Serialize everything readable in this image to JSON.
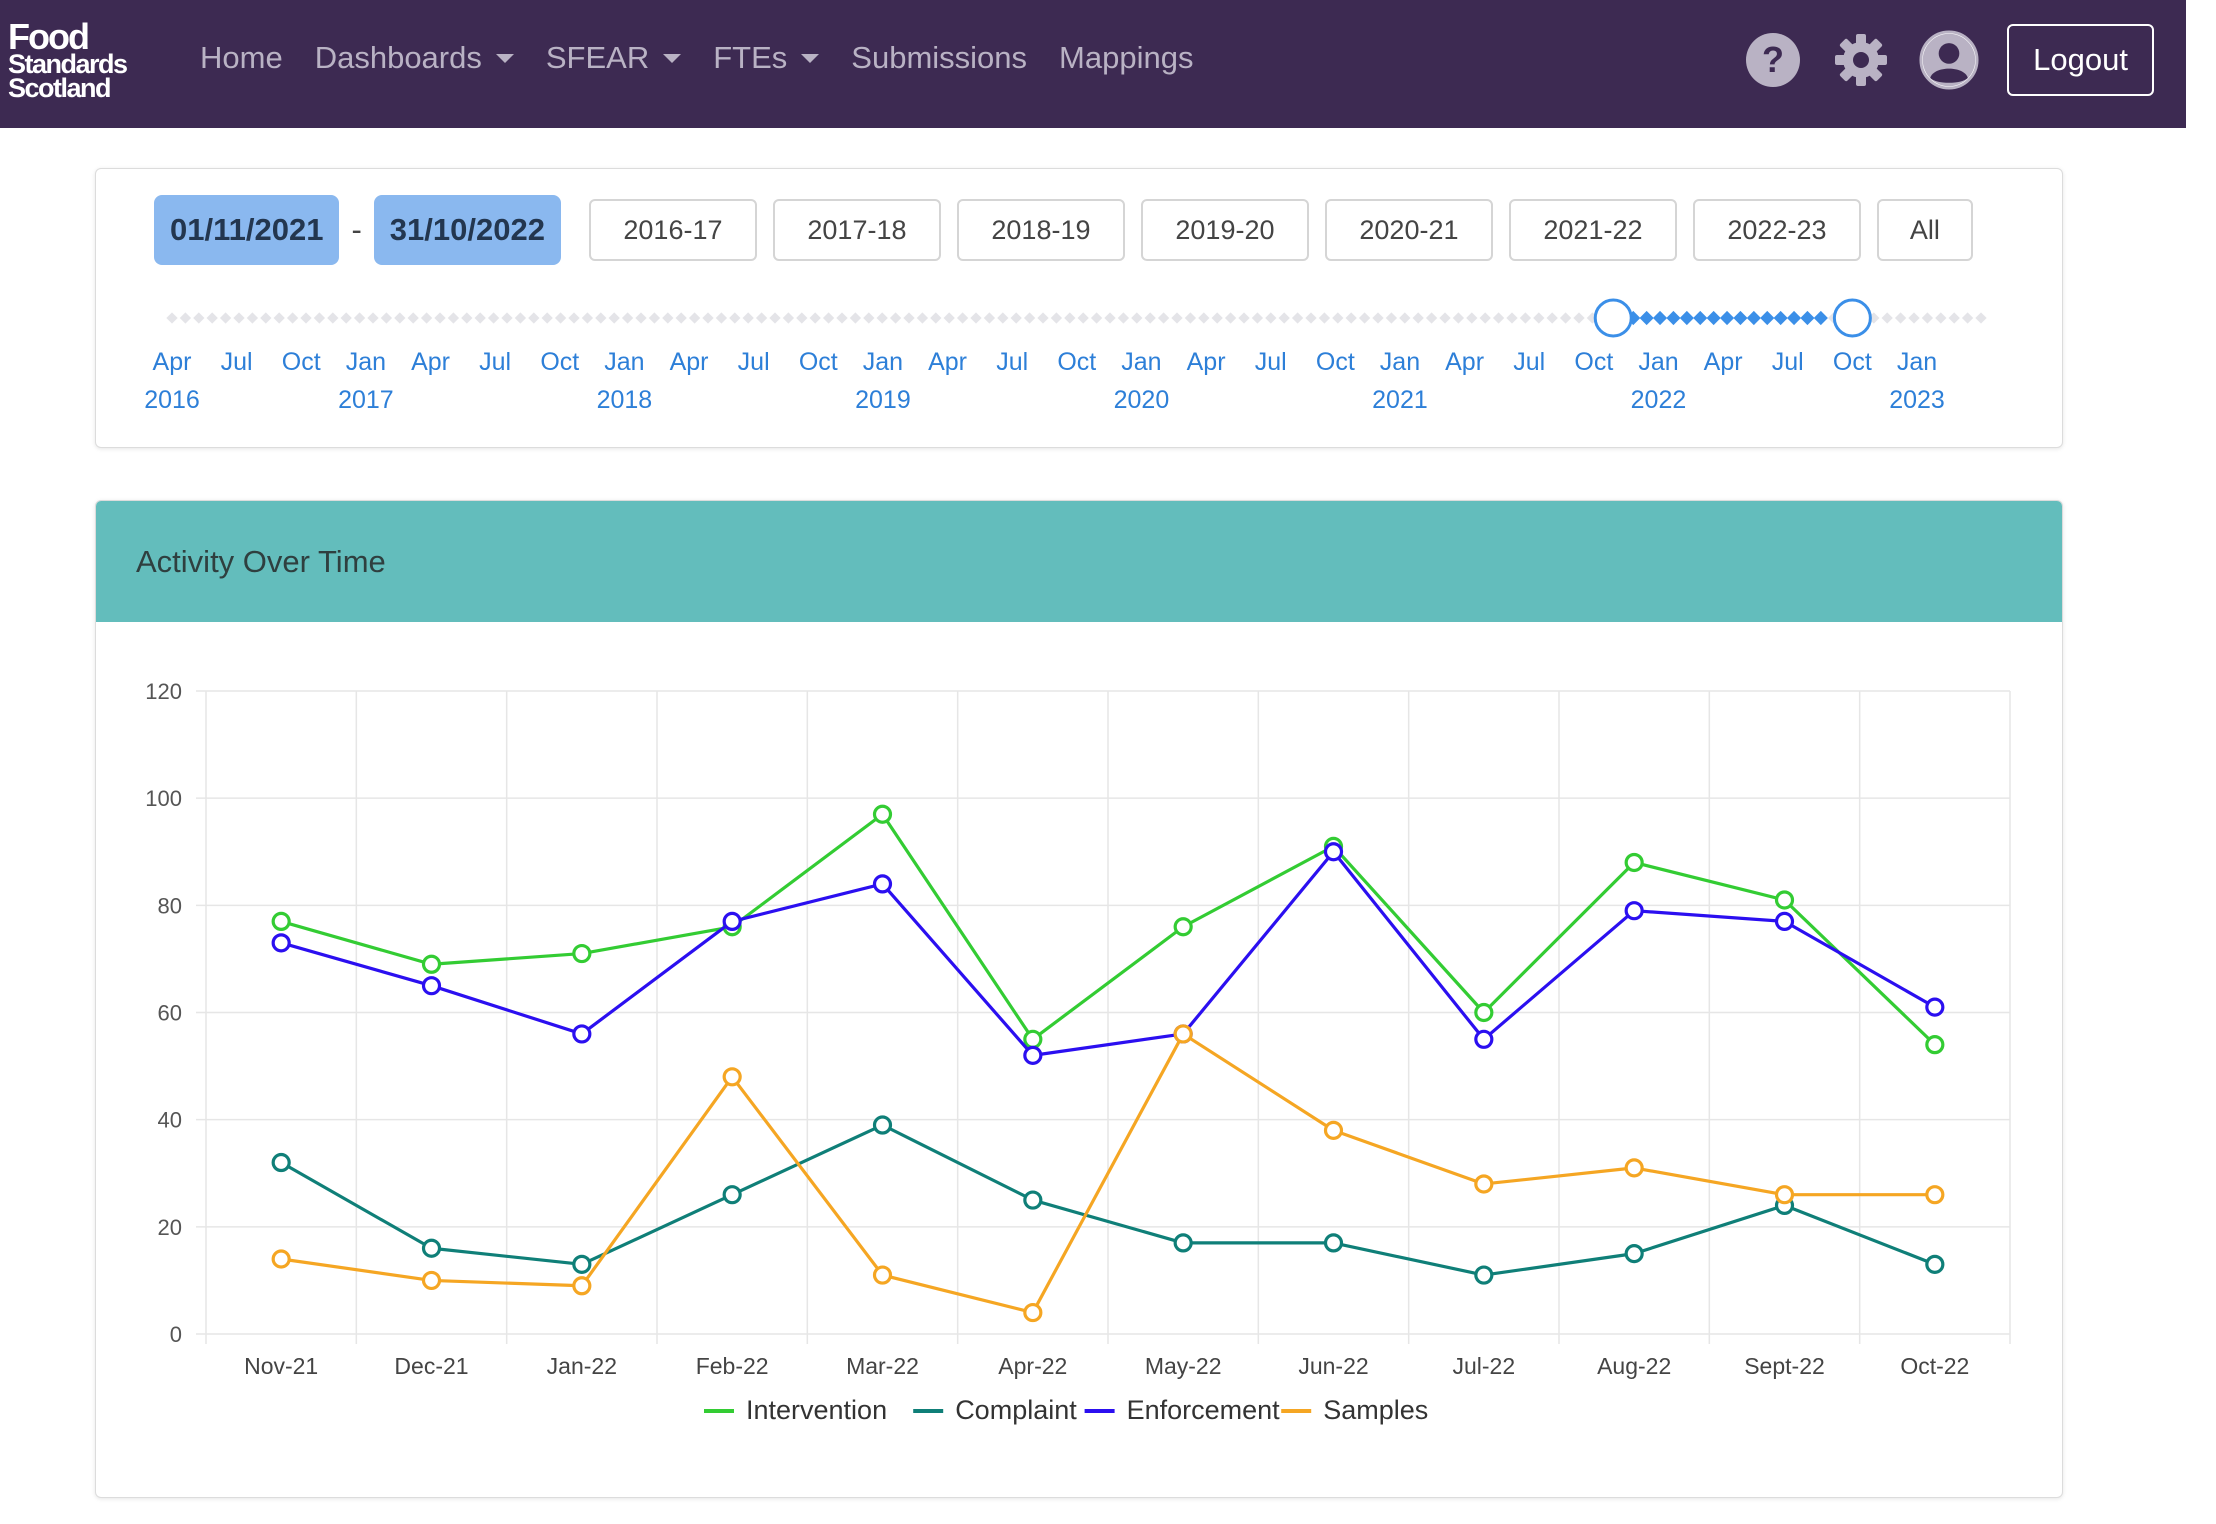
{
  "nav": {
    "logo_lines": [
      "Food",
      "Standards",
      "Scotland"
    ],
    "items": [
      {
        "label": "Home",
        "dropdown": false
      },
      {
        "label": "Dashboards",
        "dropdown": true
      },
      {
        "label": "SFEAR",
        "dropdown": true
      },
      {
        "label": "FTEs",
        "dropdown": true
      },
      {
        "label": "Submissions",
        "dropdown": false
      },
      {
        "label": "Mappings",
        "dropdown": false
      }
    ],
    "icons": [
      "help-icon",
      "gear-icon",
      "user-icon"
    ],
    "logout_label": "Logout"
  },
  "date_range": {
    "start": "01/11/2021",
    "separator": "-",
    "end": "31/10/2022",
    "periods": [
      "2016-17",
      "2017-18",
      "2018-19",
      "2019-20",
      "2020-21",
      "2021-22",
      "2022-23",
      "All"
    ],
    "timeline_ticks": [
      {
        "m": "Apr",
        "y": "2016"
      },
      {
        "m": "Jul",
        "y": ""
      },
      {
        "m": "Oct",
        "y": ""
      },
      {
        "m": "Jan",
        "y": "2017"
      },
      {
        "m": "Apr",
        "y": ""
      },
      {
        "m": "Jul",
        "y": ""
      },
      {
        "m": "Oct",
        "y": ""
      },
      {
        "m": "Jan",
        "y": "2018"
      },
      {
        "m": "Apr",
        "y": ""
      },
      {
        "m": "Jul",
        "y": ""
      },
      {
        "m": "Oct",
        "y": ""
      },
      {
        "m": "Jan",
        "y": "2019"
      },
      {
        "m": "Apr",
        "y": ""
      },
      {
        "m": "Jul",
        "y": ""
      },
      {
        "m": "Oct",
        "y": ""
      },
      {
        "m": "Jan",
        "y": "2020"
      },
      {
        "m": "Apr",
        "y": ""
      },
      {
        "m": "Jul",
        "y": ""
      },
      {
        "m": "Oct",
        "y": ""
      },
      {
        "m": "Jan",
        "y": "2021"
      },
      {
        "m": "Apr",
        "y": ""
      },
      {
        "m": "Jul",
        "y": ""
      },
      {
        "m": "Oct",
        "y": ""
      },
      {
        "m": "Jan",
        "y": "2022"
      },
      {
        "m": "Apr",
        "y": ""
      },
      {
        "m": "Jul",
        "y": ""
      },
      {
        "m": "Oct",
        "y": ""
      },
      {
        "m": "Jan",
        "y": "2023"
      }
    ],
    "selected_start_tick": 22.3,
    "selected_end_tick": 26
  },
  "chart_panel": {
    "title": "Activity Over Time"
  },
  "chart_data": {
    "type": "line",
    "title": "Activity Over Time",
    "xlabel": "",
    "ylabel": "",
    "ylim": [
      0,
      120
    ],
    "yticks": [
      0,
      20,
      40,
      60,
      80,
      100,
      120
    ],
    "grid": true,
    "legend_position": "bottom",
    "categories": [
      "Nov-21",
      "Dec-21",
      "Jan-22",
      "Feb-22",
      "Mar-22",
      "Apr-22",
      "May-22",
      "Jun-22",
      "Jul-22",
      "Aug-22",
      "Sept-22",
      "Oct-22"
    ],
    "series": [
      {
        "name": "Intervention",
        "color": "#33cc33",
        "values": [
          77,
          69,
          71,
          76,
          97,
          55,
          76,
          91,
          60,
          88,
          81,
          54
        ]
      },
      {
        "name": "Complaint",
        "color": "#0f7f78",
        "values": [
          32,
          16,
          13,
          26,
          39,
          25,
          17,
          17,
          11,
          15,
          24,
          13
        ]
      },
      {
        "name": "Enforcement",
        "color": "#2b0ff0",
        "values": [
          73,
          65,
          56,
          77,
          84,
          52,
          56,
          90,
          55,
          79,
          77,
          61
        ]
      },
      {
        "name": "Samples",
        "color": "#f5a623",
        "values": [
          14,
          10,
          9,
          48,
          11,
          4,
          56,
          38,
          28,
          31,
          26,
          26
        ]
      }
    ]
  }
}
